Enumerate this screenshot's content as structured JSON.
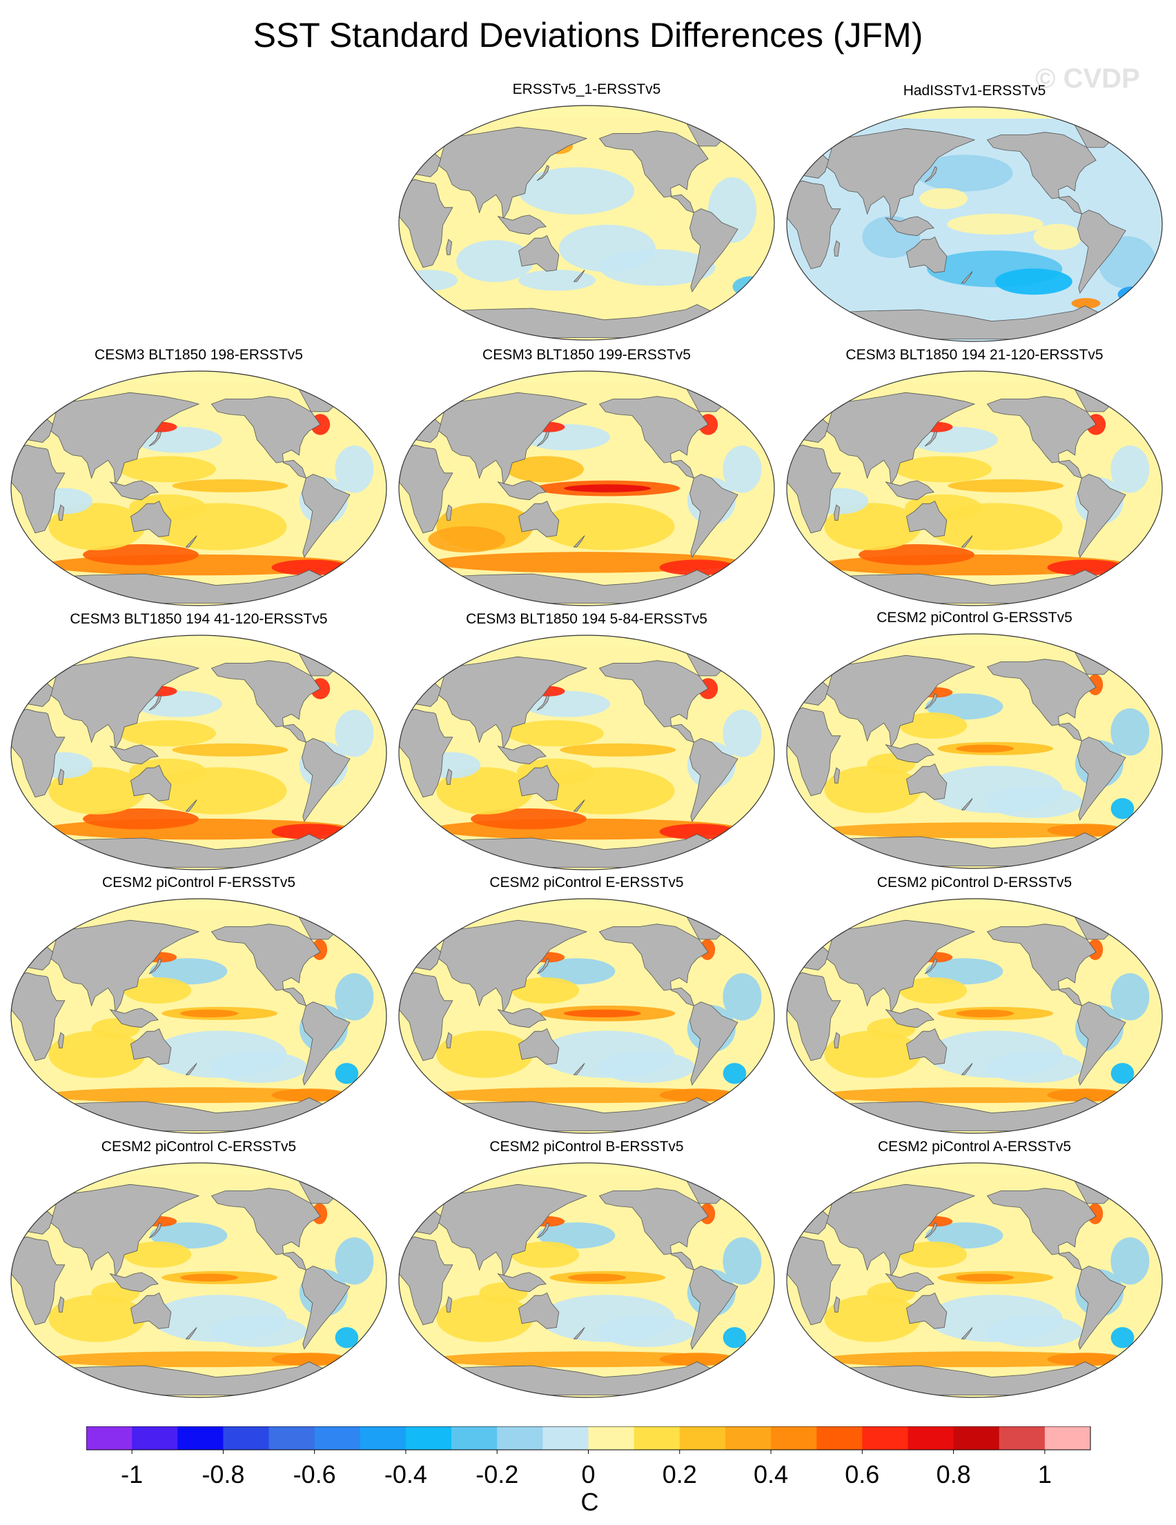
{
  "title": "SST Standard Deviations Differences (JFM)",
  "watermark": "© CVDP",
  "panels": [
    {
      "id": "p1",
      "title": "ERSSTv5_1-ERSSTv5",
      "pattern": "obs-small"
    },
    {
      "id": "p2",
      "title": "HadISSTv1-ERSSTv5",
      "pattern": "obs-blue"
    },
    {
      "id": "p3",
      "title": "CESM3 BLT1850 198-ERSSTv5",
      "pattern": "cesm3"
    },
    {
      "id": "p4",
      "title": "CESM3 BLT1850 199-ERSSTv5",
      "pattern": "cesm3-enso"
    },
    {
      "id": "p5",
      "title": "CESM3 BLT1850 194 21-120-ERSSTv5",
      "pattern": "cesm3"
    },
    {
      "id": "p6",
      "title": "CESM3 BLT1850 194 41-120-ERSSTv5",
      "pattern": "cesm3"
    },
    {
      "id": "p7",
      "title": "CESM3 BLT1850 194 5-84-ERSSTv5",
      "pattern": "cesm3"
    },
    {
      "id": "p8",
      "title": "CESM2 piControl G-ERSSTv5",
      "pattern": "cesm2"
    },
    {
      "id": "p9",
      "title": "CESM2 piControl F-ERSSTv5",
      "pattern": "cesm2"
    },
    {
      "id": "p10",
      "title": "CESM2 piControl E-ERSSTv5",
      "pattern": "cesm2-enso"
    },
    {
      "id": "p11",
      "title": "CESM2 piControl D-ERSSTv5",
      "pattern": "cesm2"
    },
    {
      "id": "p12",
      "title": "CESM2 piControl C-ERSSTv5",
      "pattern": "cesm2"
    },
    {
      "id": "p13",
      "title": "CESM2 piControl B-ERSSTv5",
      "pattern": "cesm2"
    },
    {
      "id": "p14",
      "title": "CESM2 piControl A-ERSSTv5",
      "pattern": "cesm2"
    }
  ],
  "colorbar": {
    "levels": [
      -1.1,
      -1.0,
      -0.9,
      -0.8,
      -0.7,
      -0.6,
      -0.5,
      -0.4,
      -0.3,
      -0.2,
      -0.1,
      0,
      0.1,
      0.2,
      0.3,
      0.4,
      0.5,
      0.6,
      0.7,
      0.8,
      0.9,
      1.0,
      1.1
    ],
    "colors": [
      "#8b2df0",
      "#4a1ff2",
      "#0b0df7",
      "#2b48e6",
      "#3a6fe6",
      "#2f86f2",
      "#1aa0f7",
      "#12baf7",
      "#5bc5f0",
      "#9ad4ee",
      "#c6e6f4",
      "#fff5a5",
      "#ffe047",
      "#ffc226",
      "#ffa71a",
      "#ff8c0d",
      "#ff5e05",
      "#ff2a10",
      "#e80c0c",
      "#c80808",
      "#dc4848",
      "#ffb0b0"
    ],
    "tick_labels": [
      "-1",
      "-0.8",
      "-0.6",
      "-0.4",
      "-0.2",
      "0",
      "0.2",
      "0.4",
      "0.6",
      "0.8",
      "1"
    ],
    "unit": "C"
  },
  "colors": {
    "land": "#b4b4b4",
    "sea_ice": "#fff8a8",
    "coast": "#555555"
  }
}
